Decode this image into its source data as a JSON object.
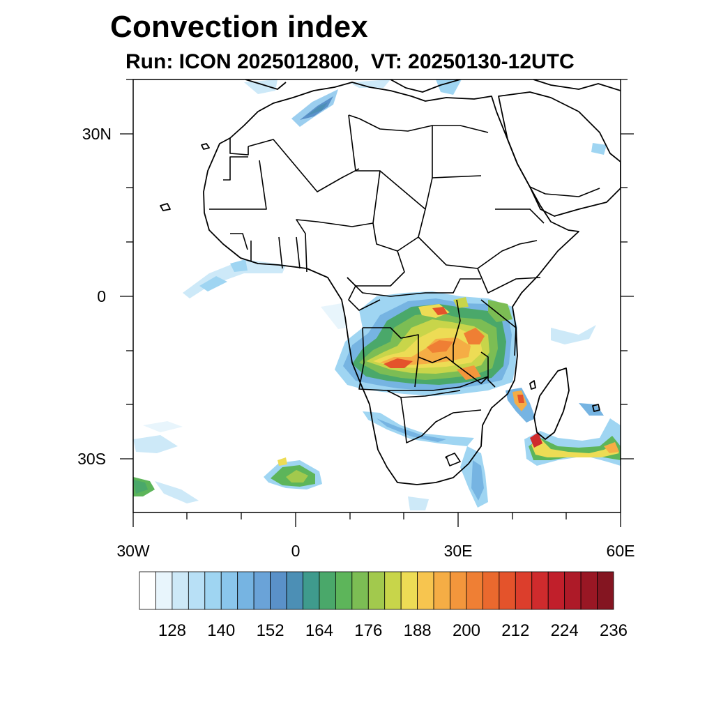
{
  "title": "Convection index",
  "subtitle": "Run: ICON 2025012800,  VT: 20250130-12UTC",
  "axes": {
    "lat_labels": [
      "30N",
      "0",
      "30S"
    ],
    "lon_labels": [
      "30W",
      "0",
      "30E",
      "60E"
    ]
  },
  "colorbar": {
    "labels": [
      "128",
      "140",
      "152",
      "164",
      "176",
      "188",
      "200",
      "212",
      "224",
      "236"
    ],
    "colors": [
      "#ffffff",
      "#e8f5fc",
      "#cde9f8",
      "#b8e0f6",
      "#9fd5f2",
      "#8ac6ec",
      "#76b4e2",
      "#6aa3d8",
      "#5a91c9",
      "#4c8fb5",
      "#3f9b8d",
      "#4aa86a",
      "#5db55a",
      "#7cbd54",
      "#a2c94d",
      "#c8d54a",
      "#eddc55",
      "#f7c54f",
      "#f5ad45",
      "#f3963c",
      "#ef7f34",
      "#ea692e",
      "#e4532b",
      "#dc3e2c",
      "#cf2b2d",
      "#c11f2b",
      "#ae1a28",
      "#991724",
      "#841521"
    ]
  }
}
